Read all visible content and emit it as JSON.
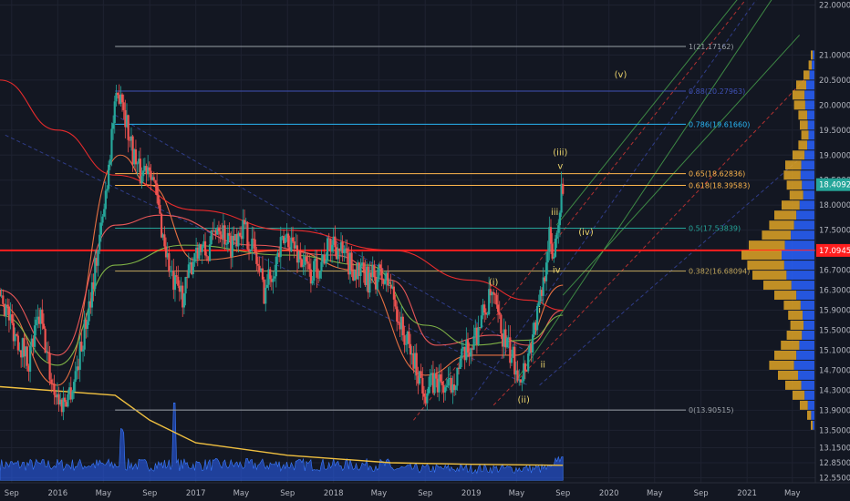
{
  "chart_data": {
    "type": "candlestick",
    "title": "",
    "y_axis": {
      "side": "right",
      "range": [
        12.45,
        22.1
      ],
      "ticks": [
        "22.00000",
        "21.00000",
        "20.50000",
        "20.00000",
        "19.50000",
        "19.00000",
        "18.50000",
        "18.00000",
        "17.50000",
        "17.10000",
        "16.70000",
        "16.30000",
        "15.90000",
        "15.50000",
        "15.10000",
        "14.70000",
        "14.30000",
        "13.90000",
        "13.50000",
        "13.15000",
        "12.85000",
        "12.55000"
      ],
      "tick_values": [
        22.0,
        21.0,
        20.5,
        20.0,
        19.5,
        19.0,
        18.5,
        18.0,
        17.5,
        17.1,
        16.7,
        16.3,
        15.9,
        15.5,
        15.1,
        14.7,
        14.3,
        13.9,
        13.5,
        13.15,
        12.85,
        12.55
      ]
    },
    "x_axis": {
      "range": [
        "2015-08-01",
        "2021-07-01"
      ],
      "ticks": [
        {
          "label": "Sep",
          "date": "2015-09-01"
        },
        {
          "label": "2016",
          "date": "2016-01-01"
        },
        {
          "label": "May",
          "date": "2016-05-01"
        },
        {
          "label": "Sep",
          "date": "2016-09-01"
        },
        {
          "label": "2017",
          "date": "2017-01-01"
        },
        {
          "label": "May",
          "date": "2017-05-01"
        },
        {
          "label": "Sep",
          "date": "2017-09-01"
        },
        {
          "label": "2018",
          "date": "2018-01-01"
        },
        {
          "label": "May",
          "date": "2018-05-01"
        },
        {
          "label": "Sep",
          "date": "2018-09-01"
        },
        {
          "label": "2019",
          "date": "2019-01-01"
        },
        {
          "label": "May",
          "date": "2019-05-01"
        },
        {
          "label": "Sep",
          "date": "2019-09-01"
        },
        {
          "label": "2020",
          "date": "2020-01-01"
        },
        {
          "label": "May",
          "date": "2020-05-01"
        },
        {
          "label": "Sep",
          "date": "2020-09-01"
        },
        {
          "label": "2021",
          "date": "2021-01-01"
        },
        {
          "label": "May",
          "date": "2021-05-01"
        }
      ]
    },
    "price_path": [
      {
        "date": "2015-08-01",
        "close": 16.3
      },
      {
        "date": "2015-09-01",
        "close": 15.6
      },
      {
        "date": "2015-10-15",
        "close": 14.9
      },
      {
        "date": "2015-11-15",
        "close": 15.8
      },
      {
        "date": "2015-12-15",
        "close": 14.5
      },
      {
        "date": "2016-01-10",
        "close": 14.0
      },
      {
        "date": "2016-02-10",
        "close": 14.4
      },
      {
        "date": "2016-03-10",
        "close": 15.4
      },
      {
        "date": "2016-04-10",
        "close": 16.8
      },
      {
        "date": "2016-05-01",
        "close": 17.8
      },
      {
        "date": "2016-05-25",
        "close": 19.6
      },
      {
        "date": "2016-06-15",
        "close": 20.4
      },
      {
        "date": "2016-07-10",
        "close": 19.3
      },
      {
        "date": "2016-08-05",
        "close": 18.6
      },
      {
        "date": "2016-09-01",
        "close": 18.9
      },
      {
        "date": "2016-10-01",
        "close": 17.6
      },
      {
        "date": "2016-11-01",
        "close": 16.4
      },
      {
        "date": "2016-12-01",
        "close": 16.2
      },
      {
        "date": "2017-01-01",
        "close": 17.2
      },
      {
        "date": "2017-02-01",
        "close": 17.0
      },
      {
        "date": "2017-03-01",
        "close": 17.7
      },
      {
        "date": "2017-04-01",
        "close": 17.2
      },
      {
        "date": "2017-05-01",
        "close": 17.6
      },
      {
        "date": "2017-06-01",
        "close": 17.2
      },
      {
        "date": "2017-07-01",
        "close": 16.3
      },
      {
        "date": "2017-08-01",
        "close": 16.9
      },
      {
        "date": "2017-09-01",
        "close": 17.4
      },
      {
        "date": "2017-10-01",
        "close": 17.0
      },
      {
        "date": "2017-11-01",
        "close": 16.6
      },
      {
        "date": "2017-12-01",
        "close": 16.9
      },
      {
        "date": "2018-01-01",
        "close": 17.3
      },
      {
        "date": "2018-02-01",
        "close": 16.9
      },
      {
        "date": "2018-03-01",
        "close": 16.7
      },
      {
        "date": "2018-04-01",
        "close": 16.5
      },
      {
        "date": "2018-05-01",
        "close": 16.6
      },
      {
        "date": "2018-06-01",
        "close": 16.4
      },
      {
        "date": "2018-07-01",
        "close": 15.5
      },
      {
        "date": "2018-08-01",
        "close": 14.9
      },
      {
        "date": "2018-09-01",
        "close": 14.3
      },
      {
        "date": "2018-10-01",
        "close": 14.5
      },
      {
        "date": "2018-11-01",
        "close": 14.3
      },
      {
        "date": "2018-12-01",
        "close": 14.8
      },
      {
        "date": "2019-01-01",
        "close": 15.2
      },
      {
        "date": "2019-02-01",
        "close": 15.8
      },
      {
        "date": "2019-02-25",
        "close": 16.2
      },
      {
        "date": "2019-03-20",
        "close": 15.5
      },
      {
        "date": "2019-04-15",
        "close": 15.0
      },
      {
        "date": "2019-05-15",
        "close": 14.6
      },
      {
        "date": "2019-06-01",
        "close": 15.0
      },
      {
        "date": "2019-06-25",
        "close": 15.8
      },
      {
        "date": "2019-07-10",
        "close": 16.4
      },
      {
        "date": "2019-07-25",
        "close": 17.4
      },
      {
        "date": "2019-08-05",
        "close": 16.9
      },
      {
        "date": "2019-08-20",
        "close": 17.8
      },
      {
        "date": "2019-09-01",
        "close": 18.41
      }
    ],
    "moving_averages": [
      {
        "color": "#ff7a45",
        "points": [
          [
            "2015-08-01",
            16.0
          ],
          [
            "2016-01-01",
            14.4
          ],
          [
            "2016-06-15",
            19.0
          ],
          [
            "2016-09-01",
            18.4
          ],
          [
            "2017-01-01",
            16.9
          ],
          [
            "2017-09-01",
            17.1
          ],
          [
            "2018-03-01",
            16.7
          ],
          [
            "2018-09-01",
            14.6
          ],
          [
            "2019-01-01",
            15.0
          ],
          [
            "2019-05-01",
            15.0
          ],
          [
            "2019-09-01",
            16.4
          ]
        ]
      },
      {
        "color": "#ff5d5d",
        "points": [
          [
            "2015-08-01",
            16.3
          ],
          [
            "2016-01-01",
            15.0
          ],
          [
            "2016-06-01",
            17.6
          ],
          [
            "2016-10-01",
            17.8
          ],
          [
            "2017-06-01",
            17.2
          ],
          [
            "2018-01-01",
            17.0
          ],
          [
            "2018-06-01",
            16.5
          ],
          [
            "2018-10-01",
            15.2
          ],
          [
            "2019-03-01",
            15.4
          ],
          [
            "2019-06-01",
            15.2
          ],
          [
            "2019-09-01",
            15.9
          ]
        ]
      },
      {
        "color": "#8bc34a",
        "points": [
          [
            "2015-08-01",
            15.8
          ],
          [
            "2016-01-01",
            14.8
          ],
          [
            "2016-06-01",
            16.8
          ],
          [
            "2016-12-01",
            17.2
          ],
          [
            "2017-09-01",
            17.0
          ],
          [
            "2018-04-01",
            16.8
          ],
          [
            "2018-09-01",
            15.6
          ],
          [
            "2019-01-01",
            15.2
          ],
          [
            "2019-06-01",
            15.3
          ],
          [
            "2019-09-01",
            15.8
          ]
        ]
      },
      {
        "color": "#ff2d2d",
        "points": [
          [
            "2015-08-01",
            20.5
          ],
          [
            "2016-01-01",
            19.5
          ],
          [
            "2016-06-01",
            18.6
          ],
          [
            "2017-01-01",
            17.9
          ],
          [
            "2017-09-01",
            17.5
          ],
          [
            "2018-06-01",
            17.1
          ],
          [
            "2019-01-01",
            16.5
          ],
          [
            "2019-06-01",
            16.1
          ],
          [
            "2019-09-01",
            15.9
          ]
        ]
      }
    ],
    "horizontal_levels": [
      {
        "price": 21.17162,
        "label": "1(21.17162)",
        "color": "#9aa0a6"
      },
      {
        "price": 20.27963,
        "label": "0.88(20.27963)",
        "color": "#3f51b5"
      },
      {
        "price": 19.6166,
        "label": "0.786(19.61660)",
        "color": "#29b6f6"
      },
      {
        "price": 18.62836,
        "label": "0.65(18.62836)",
        "color": "#ffb74d"
      },
      {
        "price": 18.39583,
        "label": "0.618(18.39583)",
        "color": "#ffb74d"
      },
      {
        "price": 17.53839,
        "label": "0.5(17.53839)",
        "color": "#26a69a"
      },
      {
        "price": 16.68094,
        "label": "0.382(16.68094)",
        "color": "#c0a55a"
      },
      {
        "price": 13.90515,
        "label": "0(13.90515)",
        "color": "#9aa0a6"
      }
    ],
    "support_line": {
      "price": 17.09454,
      "color": "#ff1e1e"
    },
    "price_tags": [
      {
        "price": 18.40927,
        "label": "18.40927",
        "color": "#26a69a"
      },
      {
        "price": 17.09454,
        "label": "17.09454",
        "color": "#ff1e1e"
      }
    ],
    "wave_labels": [
      {
        "text": "(i)",
        "date": "2019-03-01",
        "price": 16.4
      },
      {
        "text": "(ii)",
        "date": "2019-05-20",
        "price": 14.05
      },
      {
        "text": "i",
        "date": "2019-07-01",
        "price": 15.85
      },
      {
        "text": "ii",
        "date": "2019-07-10",
        "price": 14.75
      },
      {
        "text": "iii",
        "date": "2019-08-10",
        "price": 17.8
      },
      {
        "text": "iv",
        "date": "2019-08-15",
        "price": 16.65
      },
      {
        "text": "v",
        "date": "2019-08-25",
        "price": 18.72
      },
      {
        "text": "(iii)",
        "date": "2019-08-25",
        "price": 19.0
      },
      {
        "text": "(iv)",
        "date": "2019-11-01",
        "price": 17.4
      },
      {
        "text": "(v)",
        "date": "2020-02-01",
        "price": 20.55
      }
    ],
    "channel_lines": [
      {
        "color": "#4caf50",
        "style": "solid",
        "points": [
          [
            "2019-05-01",
            14.5
          ],
          [
            "2021-04-20",
            22.6
          ]
        ]
      },
      {
        "color": "#4caf50",
        "style": "solid",
        "points": [
          [
            "2019-09-01",
            16.2
          ],
          [
            "2021-05-20",
            21.4
          ]
        ]
      },
      {
        "color": "#4caf50",
        "style": "solid",
        "points": [
          [
            "2019-08-15",
            17.6
          ],
          [
            "2021-04-01",
            23.2
          ]
        ]
      },
      {
        "color": "#e53935",
        "style": "dashed",
        "points": [
          [
            "2018-08-01",
            13.7
          ],
          [
            "2021-04-01",
            23.0
          ]
        ]
      },
      {
        "color": "#e53935",
        "style": "dashed",
        "points": [
          [
            "2019-03-01",
            14.0
          ],
          [
            "2021-06-01",
            20.5
          ]
        ]
      },
      {
        "color": "#3949ab",
        "style": "dashed",
        "points": [
          [
            "2015-08-15",
            19.4
          ],
          [
            "2019-06-01",
            14.4
          ]
        ]
      },
      {
        "color": "#3949ab",
        "style": "dashed",
        "points": [
          [
            "2016-06-01",
            19.8
          ],
          [
            "2019-06-15",
            15.0
          ]
        ]
      },
      {
        "color": "#3949ab",
        "style": "dashed",
        "points": [
          [
            "2019-01-01",
            14.1
          ],
          [
            "2021-04-01",
            22.8
          ]
        ]
      },
      {
        "color": "#3949ab",
        "style": "dashed",
        "points": [
          [
            "2019-07-01",
            14.4
          ],
          [
            "2021-06-01",
            19.0
          ]
        ]
      }
    ],
    "volume_profile": [
      {
        "price": 21.0,
        "vol": 0.05
      },
      {
        "price": 20.8,
        "vol": 0.08
      },
      {
        "price": 20.6,
        "vol": 0.15
      },
      {
        "price": 20.4,
        "vol": 0.25
      },
      {
        "price": 20.2,
        "vol": 0.3
      },
      {
        "price": 20.0,
        "vol": 0.28
      },
      {
        "price": 19.8,
        "vol": 0.22
      },
      {
        "price": 19.6,
        "vol": 0.2
      },
      {
        "price": 19.4,
        "vol": 0.18
      },
      {
        "price": 19.2,
        "vol": 0.22
      },
      {
        "price": 19.0,
        "vol": 0.3
      },
      {
        "price": 18.8,
        "vol": 0.4
      },
      {
        "price": 18.6,
        "vol": 0.42
      },
      {
        "price": 18.4,
        "vol": 0.38
      },
      {
        "price": 18.2,
        "vol": 0.34
      },
      {
        "price": 18.0,
        "vol": 0.45
      },
      {
        "price": 17.8,
        "vol": 0.55
      },
      {
        "price": 17.6,
        "vol": 0.62
      },
      {
        "price": 17.4,
        "vol": 0.72
      },
      {
        "price": 17.2,
        "vol": 0.9
      },
      {
        "price": 17.0,
        "vol": 1.0
      },
      {
        "price": 16.8,
        "vol": 0.92
      },
      {
        "price": 16.6,
        "vol": 0.85
      },
      {
        "price": 16.4,
        "vol": 0.7
      },
      {
        "price": 16.2,
        "vol": 0.55
      },
      {
        "price": 16.0,
        "vol": 0.42
      },
      {
        "price": 15.8,
        "vol": 0.36
      },
      {
        "price": 15.6,
        "vol": 0.33
      },
      {
        "price": 15.4,
        "vol": 0.38
      },
      {
        "price": 15.2,
        "vol": 0.46
      },
      {
        "price": 15.0,
        "vol": 0.55
      },
      {
        "price": 14.8,
        "vol": 0.62
      },
      {
        "price": 14.6,
        "vol": 0.5
      },
      {
        "price": 14.4,
        "vol": 0.4
      },
      {
        "price": 14.2,
        "vol": 0.3
      },
      {
        "price": 14.0,
        "vol": 0.2
      },
      {
        "price": 13.8,
        "vol": 0.1
      },
      {
        "price": 13.6,
        "vol": 0.05
      }
    ],
    "volume_baseline": {
      "color": "#f0c040",
      "points": [
        [
          "2015-08-01",
          14.37
        ],
        [
          "2016-06-01",
          14.2
        ],
        [
          "2016-09-01",
          13.7
        ],
        [
          "2017-01-01",
          13.25
        ],
        [
          "2017-09-01",
          13.0
        ],
        [
          "2018-06-01",
          12.85
        ],
        [
          "2019-01-01",
          12.82
        ],
        [
          "2019-09-01",
          12.8
        ]
      ]
    },
    "colors": {
      "up": "#26a69a",
      "down": "#ef5350",
      "background": "#131722",
      "volume": "#2962ff"
    }
  }
}
